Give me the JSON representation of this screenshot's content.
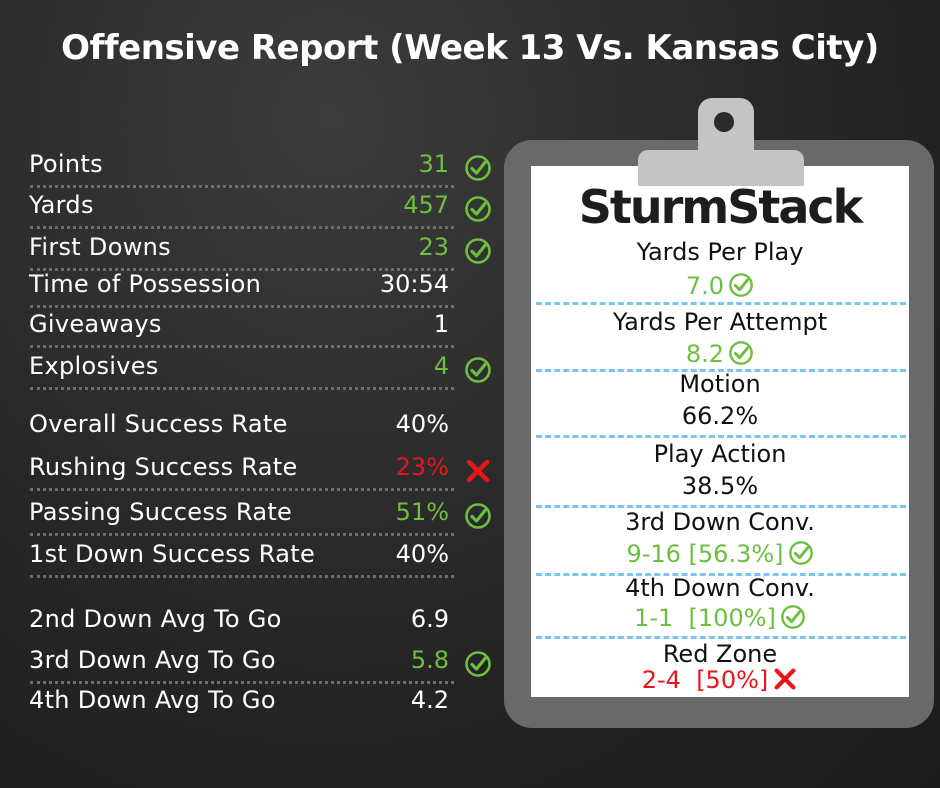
{
  "title": "Offensive Report (Week 13 Vs. Kansas City)",
  "colors": {
    "good": "#6cbf3f",
    "bad": "#e8161a",
    "neutral": "#ffffff"
  },
  "stats": [
    {
      "label": "Points",
      "value": "31",
      "status": "good",
      "icon": "check-circle-icon"
    },
    {
      "label": "Yards",
      "value": "457",
      "status": "good",
      "icon": "check-circle-icon"
    },
    {
      "label": "First Downs",
      "value": "23",
      "status": "good",
      "icon": "check-circle-icon"
    },
    {
      "label": "Time of Possession",
      "value": "30:54",
      "status": "neutral"
    },
    {
      "label": "Giveaways",
      "value": "1",
      "status": "neutral"
    },
    {
      "label": "Explosives",
      "value": "4",
      "status": "good",
      "icon": "check-circle-icon"
    },
    {
      "label": "Overall Success Rate",
      "value": "40%",
      "status": "neutral"
    },
    {
      "label": "Rushing Success Rate",
      "value": "23%",
      "status": "bad",
      "icon": "x-icon"
    },
    {
      "label": "Passing Success Rate",
      "value": "51%",
      "status": "good",
      "icon": "check-circle-icon"
    },
    {
      "label": "1st Down Success Rate",
      "value": "40%",
      "status": "neutral"
    },
    {
      "label": "2nd Down Avg To Go",
      "value": "6.9",
      "status": "neutral"
    },
    {
      "label": "3rd Down Avg To Go",
      "value": "5.8",
      "status": "good",
      "icon": "check-circle-icon"
    },
    {
      "label": "4th Down Avg To Go",
      "value": "4.2",
      "status": "neutral"
    }
  ],
  "clipboard": {
    "brand": "SturmStack",
    "items": [
      {
        "label": "Yards Per Play",
        "value": "7.0",
        "status": "good",
        "icon": "check-circle-icon"
      },
      {
        "label": "Yards Per Attempt",
        "value": "8.2",
        "status": "good",
        "icon": "check-circle-icon"
      },
      {
        "label": "Motion",
        "value": "66.2%",
        "status": "neutral"
      },
      {
        "label": "Play Action",
        "value": "38.5%",
        "status": "neutral"
      },
      {
        "label": "3rd Down Conv.",
        "value": "9-16 [56.3%]",
        "status": "good",
        "icon": "check-circle-icon"
      },
      {
        "label": "4th Down Conv.",
        "value": "1-1  [100%]",
        "status": "good",
        "icon": "check-circle-icon"
      },
      {
        "label": "Red Zone",
        "value": "2-4  [50%]",
        "status": "bad",
        "icon": "x-icon"
      }
    ]
  }
}
